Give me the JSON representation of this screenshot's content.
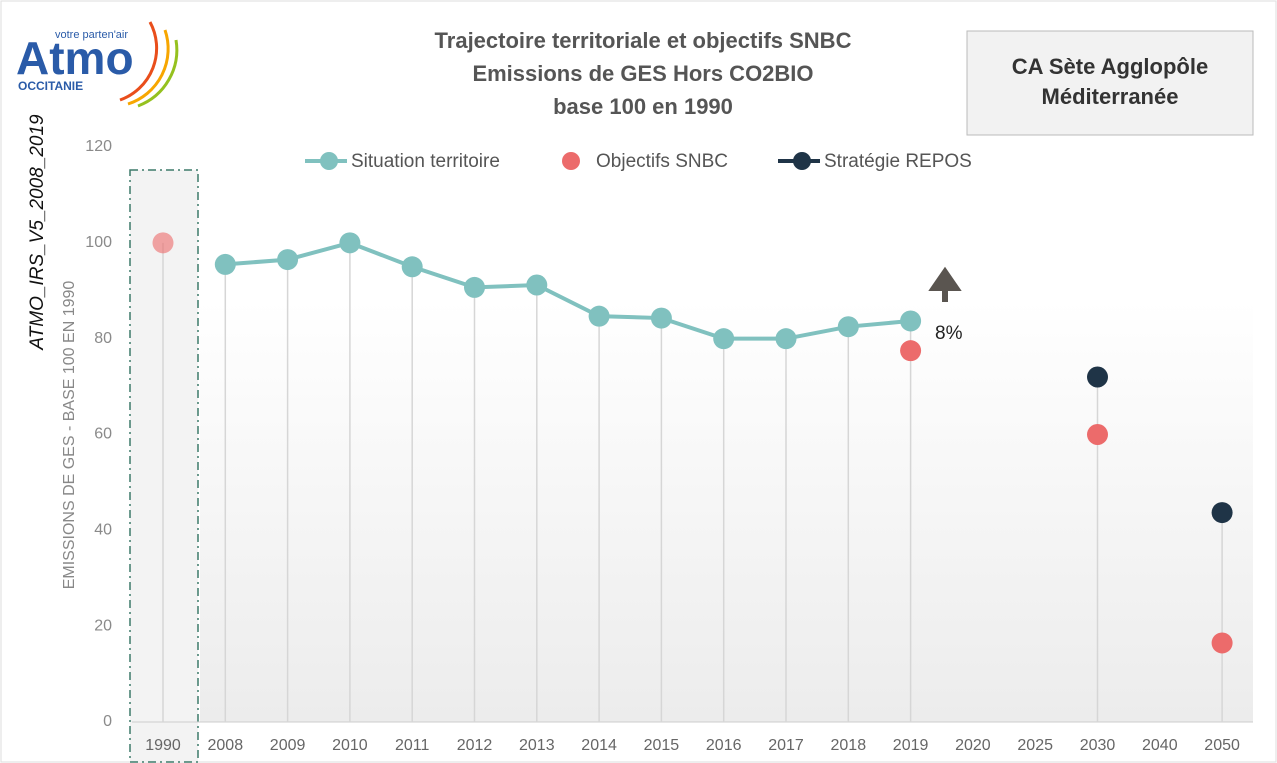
{
  "logo": {
    "name": "Atmo",
    "tagline": "votre parten'air",
    "region": "OCCITANIE"
  },
  "side_note": "ATMO_IRS_V5_2008_2019",
  "territory": "CA Sète Agglopôle\nMéditerranée",
  "chart_data": {
    "type": "line",
    "title": [
      "Trajectoire territoriale et objectifs SNBC",
      "Emissions de GES Hors CO2BIO",
      "base 100 en 1990"
    ],
    "y_label": "EMISSIONS  DE GES - BASE 100 EN 1990",
    "categories": [
      "1990",
      "2008",
      "2009",
      "2010",
      "2011",
      "2012",
      "2013",
      "2014",
      "2015",
      "2016",
      "2017",
      "2018",
      "2019",
      "2020",
      "2025",
      "2030",
      "2040",
      "2050"
    ],
    "series": [
      {
        "name": "Situation territoire",
        "color": "#80c1bf",
        "values": [
          null,
          95.5,
          96.5,
          100,
          95,
          90.7,
          91.2,
          84.7,
          84.3,
          80,
          80,
          82.5,
          83.7,
          null,
          null,
          null,
          null,
          null
        ]
      },
      {
        "name": "Objectifs SNBC",
        "color": "#ec6b6b",
        "values": [
          100,
          null,
          null,
          null,
          null,
          null,
          null,
          null,
          null,
          null,
          null,
          null,
          77.5,
          null,
          null,
          60,
          null,
          16.5
        ]
      },
      {
        "name": "Stratégie REPOS",
        "color": "#1f3447",
        "values": [
          null,
          null,
          null,
          null,
          null,
          null,
          null,
          null,
          null,
          null,
          null,
          null,
          null,
          null,
          null,
          72,
          null,
          43.7
        ]
      }
    ],
    "annotation": "8%",
    "ylim": [
      0,
      120
    ],
    "yticks": [
      0,
      20,
      40,
      60,
      80,
      100,
      120
    ]
  }
}
